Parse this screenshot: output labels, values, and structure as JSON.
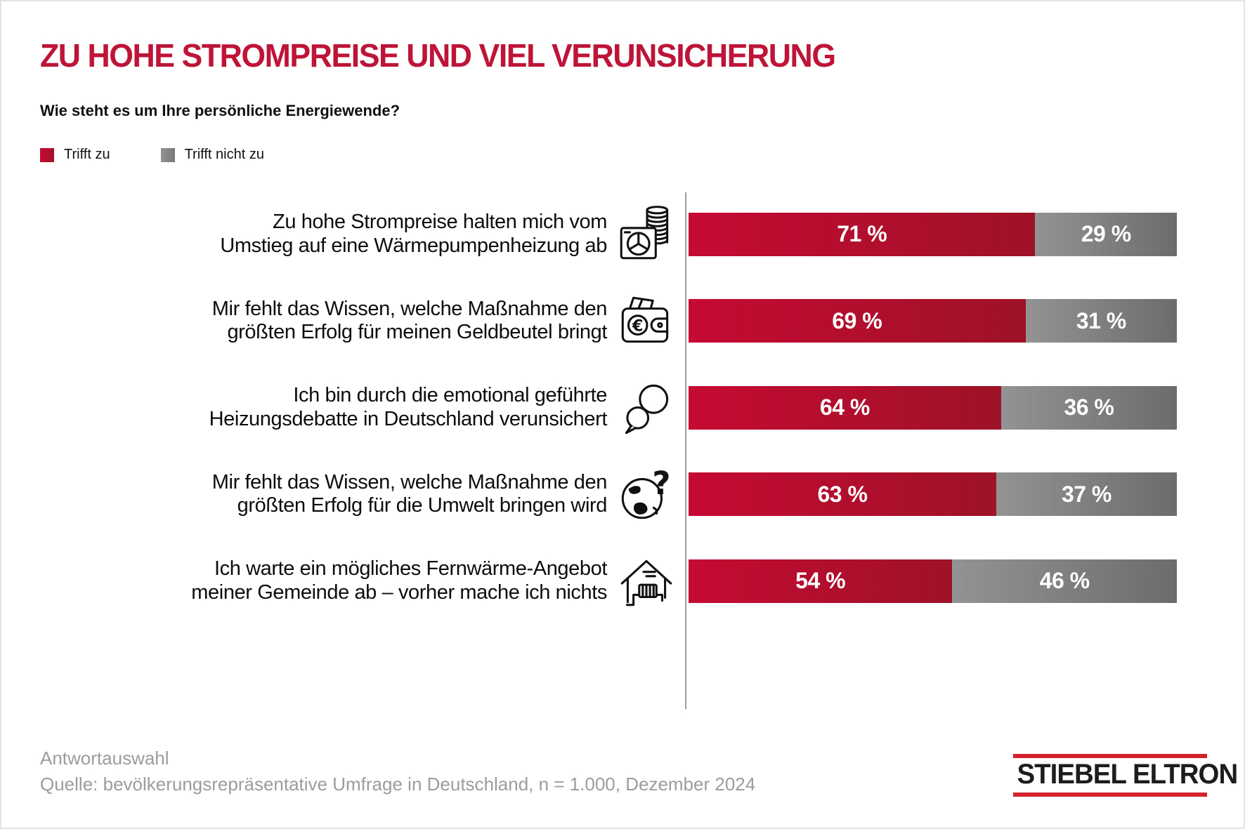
{
  "title": "ZU HOHE STROMPREISE UND VIEL VERUNSICHERUNG",
  "subtitle": "Wie steht es um Ihre persönliche Energiewende?",
  "colors": {
    "title_red": "#be1437",
    "bar_red": "#b10d2f",
    "bar_gray": "#8a8a8a",
    "footer_gray": "#9c9c9c",
    "logo_red": "#d2232e"
  },
  "legend": {
    "items": [
      {
        "label": "Trifft zu",
        "color": "#b10d2f"
      },
      {
        "label": "Trifft nicht zu",
        "color": "#8a8a8a"
      }
    ]
  },
  "chart_data": {
    "type": "bar",
    "orientation": "horizontal",
    "stacked": true,
    "unit": "%",
    "xlim": [
      0,
      100
    ],
    "legend_position": "top-left",
    "value_labels": "inside-center",
    "grid": false,
    "categories": [
      "Zu hohe Strompreise halten mich vom Umstieg auf eine Wärmepumpenheizung ab",
      "Mir fehlt das Wissen, welche Maßnahme den größten Erfolg für meinen Geldbeutel bringt",
      "Ich bin durch die emotional geführte Heizungsdebatte in Deutschland verunsichert",
      "Mir fehlt das Wissen, welche Maßnahme den größten Erfolg für die Umwelt bringen wird",
      "Ich warte ein mögliches Fernwärme-Angebot meiner Gemeinde ab – vorher mache ich nichts"
    ],
    "series": [
      {
        "name": "Trifft zu",
        "color": "#b10d2f",
        "values": [
          71,
          69,
          64,
          63,
          54
        ]
      },
      {
        "name": "Trifft nicht zu",
        "color": "#8a8a8a",
        "values": [
          29,
          31,
          36,
          37,
          46
        ]
      }
    ]
  },
  "rows": [
    {
      "label_lines": [
        "Zu hohe Strompreise halten mich vom",
        "Umstieg auf eine Wärmepumpenheizung ab"
      ],
      "icon": "heat-pump-coins-icon",
      "zu": 71,
      "nicht": 29,
      "zu_label": "71 %",
      "nicht_label": "29 %"
    },
    {
      "label_lines": [
        "Mir fehlt das Wissen, welche Maßnahme den",
        "größten Erfolg für meinen Geldbeutel bringt"
      ],
      "icon": "wallet-euro-icon",
      "zu": 69,
      "nicht": 31,
      "zu_label": "69 %",
      "nicht_label": "31 %"
    },
    {
      "label_lines": [
        "Ich bin durch die emotional geführte",
        "Heizungsdebatte in Deutschland verunsichert"
      ],
      "icon": "speech-bubbles-icon",
      "zu": 64,
      "nicht": 36,
      "zu_label": "64 %",
      "nicht_label": "36 %"
    },
    {
      "label_lines": [
        "Mir fehlt das Wissen, welche Maßnahme den",
        "größten Erfolg für die Umwelt bringen wird"
      ],
      "icon": "globe-question-icon",
      "zu": 63,
      "nicht": 37,
      "zu_label": "63 %",
      "nicht_label": "37 %"
    },
    {
      "label_lines": [
        "Ich warte ein mögliches Fernwärme-Angebot",
        "meiner Gemeinde ab – vorher mache ich nichts"
      ],
      "icon": "house-radiator-icon",
      "zu": 54,
      "nicht": 46,
      "zu_label": "54 %",
      "nicht_label": "46 %"
    }
  ],
  "footer": {
    "line1": "Antwortauswahl",
    "line2": "Quelle: bevölkerungsrepräsentative Umfrage in Deutschland, n = 1.000, Dezember 2024"
  },
  "logo": {
    "text": "STIEBEL ELTRON"
  }
}
